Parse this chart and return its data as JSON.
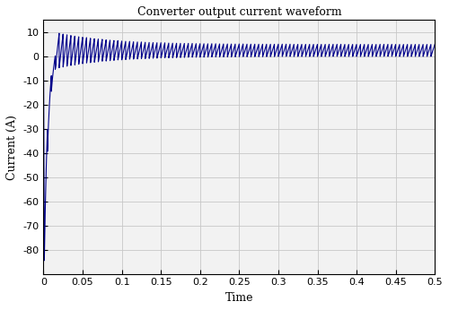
{
  "title": "Converter output current waveform",
  "xlabel": "Time",
  "ylabel": "Current (A)",
  "xlim": [
    0,
    0.5
  ],
  "ylim": [
    -90,
    15
  ],
  "yticks": [
    -80,
    -70,
    -60,
    -50,
    -40,
    -30,
    -20,
    -10,
    0,
    10
  ],
  "xticks": [
    0,
    0.05,
    0.1,
    0.15,
    0.2,
    0.25,
    0.3,
    0.35,
    0.4,
    0.45,
    0.5
  ],
  "line_color": "#00008B",
  "line_width": 0.8,
  "bg_color": "#f2f2f2",
  "grid_color": "#c8c8c8",
  "switching_freq": 200,
  "ss_mean": 2.5,
  "ss_amp": 2.5,
  "spike_val": -80,
  "spike_duration": 0.001,
  "rise_duration": 0.015,
  "damp_time_const": 3.0,
  "total_time": 0.5,
  "dt": 5e-05,
  "transient_extra_amp": 5.0
}
